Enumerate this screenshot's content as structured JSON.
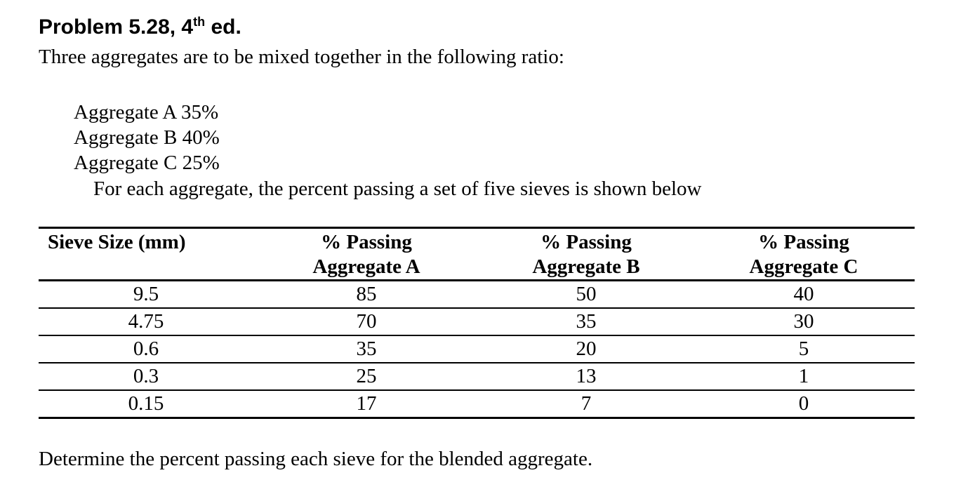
{
  "title": {
    "part1": "Problem 5.28, 4",
    "sup": "th",
    "part2": " ed."
  },
  "intro": "Three aggregates are to be mixed together in the following ratio:",
  "ratios": [
    "Aggregate A 35%",
    "Aggregate B 40%",
    "Aggregate C 25%"
  ],
  "note": "For each aggregate, the percent passing a set of five sieves is shown below",
  "table": {
    "headers": [
      {
        "line1": "Sieve Size (mm)",
        "line2": ""
      },
      {
        "line1": "% Passing",
        "line2": "Aggregate A"
      },
      {
        "line1": "% Passing",
        "line2": "Aggregate B"
      },
      {
        "line1": "% Passing",
        "line2": "Aggregate C"
      }
    ],
    "rows": [
      [
        "9.5",
        "85",
        "50",
        "40"
      ],
      [
        "4.75",
        "70",
        "35",
        "30"
      ],
      [
        "0.6",
        "35",
        "20",
        "5"
      ],
      [
        "0.3",
        "25",
        "13",
        "1"
      ],
      [
        "0.15",
        "17",
        "7",
        "0"
      ]
    ]
  },
  "question": "Determine the percent passing each sieve for the blended aggregate.",
  "colors": {
    "text": "#000000",
    "background": "#ffffff",
    "rule": "#000000"
  }
}
